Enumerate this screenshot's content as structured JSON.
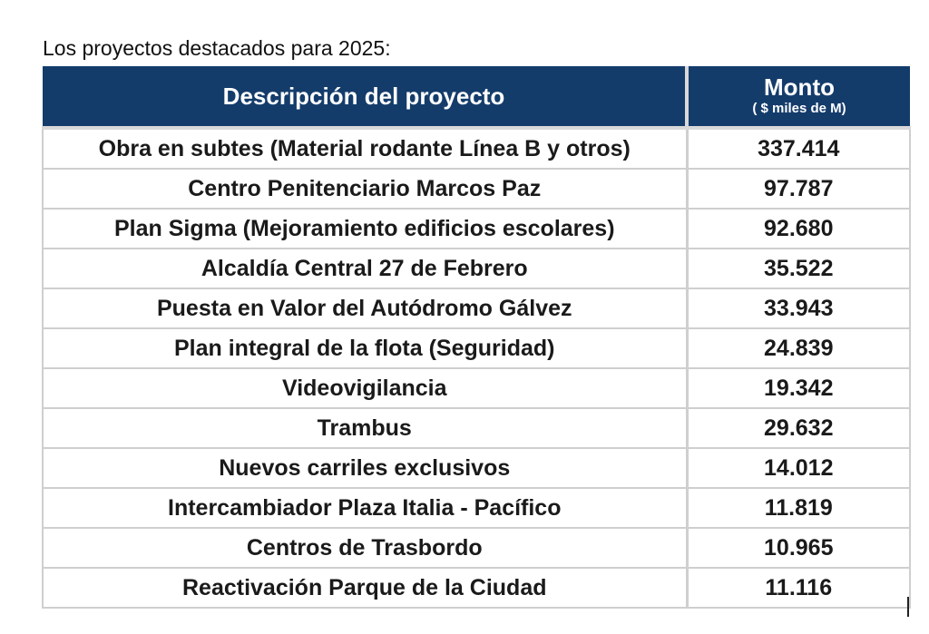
{
  "caption": "Los proyectos destacados para 2025:",
  "table": {
    "headers": {
      "description": "Descripción del proyecto",
      "amount": "Monto",
      "amount_unit": "( $ miles de M)"
    },
    "rows": [
      {
        "description": "Obra en subtes (Material rodante Línea B y otros)",
        "amount": "337.414"
      },
      {
        "description": "Centro Penitenciario Marcos Paz",
        "amount": "97.787"
      },
      {
        "description": "Plan Sigma (Mejoramiento edificios escolares)",
        "amount": "92.680"
      },
      {
        "description": "Alcaldía Central 27 de Febrero",
        "amount": "35.522"
      },
      {
        "description": "Puesta en Valor del Autódromo Gálvez",
        "amount": "33.943"
      },
      {
        "description": "Plan integral de la flota (Seguridad)",
        "amount": "24.839"
      },
      {
        "description": "Videovigilancia",
        "amount": "19.342"
      },
      {
        "description": "Trambus",
        "amount": "29.632"
      },
      {
        "description": "Nuevos carriles exclusivos",
        "amount": "14.012"
      },
      {
        "description": "Intercambiador Plaza Italia - Pacífico",
        "amount": "11.819"
      },
      {
        "description": "Centros de Trasbordo",
        "amount": "10.965"
      },
      {
        "description": "Reactivación Parque de la Ciudad",
        "amount": "11.116"
      }
    ]
  },
  "colors": {
    "header_background": "#143c6b",
    "header_text": "#ffffff",
    "grid_lines": "#cfcfcf"
  }
}
